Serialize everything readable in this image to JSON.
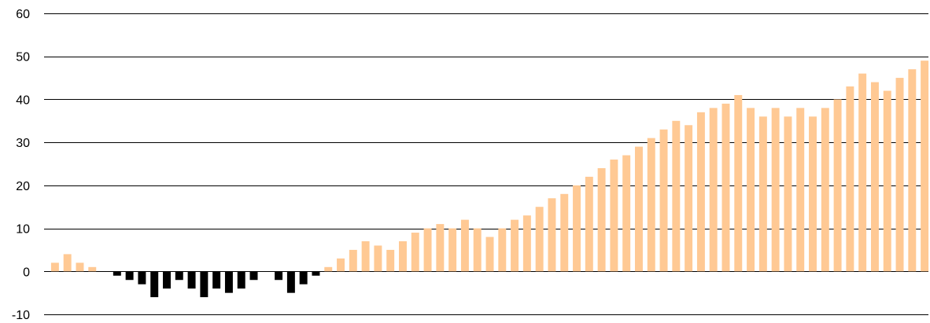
{
  "chart_data": {
    "type": "bar",
    "title": "",
    "xlabel": "",
    "ylabel": "",
    "ylim": [
      -10,
      60
    ],
    "yticks": [
      60,
      50,
      40,
      30,
      20,
      10,
      0,
      -10
    ],
    "ytick_labels": [
      "60",
      "50",
      "40",
      "30",
      "20",
      "10",
      "0",
      "-10"
    ],
    "grid": true,
    "colors": {
      "positive": "#FFC994",
      "negative": "#000000",
      "grid": "#000000"
    },
    "values": [
      2,
      4,
      2,
      1,
      0,
      -1,
      -2,
      -3,
      -6,
      -4,
      -2,
      -4,
      -6,
      -4,
      -5,
      -4,
      -2,
      0,
      -2,
      -5,
      -3,
      -1,
      1,
      3,
      5,
      7,
      6,
      5,
      7,
      9,
      10,
      11,
      10,
      12,
      10,
      8,
      10,
      12,
      13,
      15,
      17,
      18,
      20,
      22,
      24,
      26,
      27,
      29,
      31,
      33,
      35,
      34,
      37,
      38,
      39,
      41,
      38,
      36,
      38,
      36,
      38,
      36,
      38,
      40,
      43,
      46,
      44,
      42,
      45,
      47,
      49
    ]
  }
}
